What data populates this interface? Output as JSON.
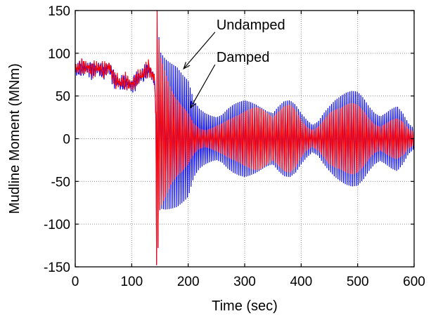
{
  "chart_data": {
    "type": "line",
    "title": "",
    "xlabel": "Time (sec)",
    "ylabel": "Mudline Moment (MNm)",
    "xlim": [
      0,
      600
    ],
    "ylim": [
      -150,
      150
    ],
    "xticks": [
      "0",
      "100",
      "200",
      "300",
      "400",
      "500",
      "600"
    ],
    "yticks": [
      "150",
      "100",
      "50",
      "0",
      "-50",
      "-100",
      "-150"
    ],
    "grid": true,
    "legend": "none",
    "series": [
      {
        "name": "Undamped",
        "color": "#0000ff",
        "x": [
          0,
          10,
          20,
          30,
          40,
          50,
          60,
          70,
          80,
          90,
          100,
          110,
          120,
          130,
          140,
          145,
          150,
          160,
          170,
          180,
          190,
          200,
          210,
          220,
          230,
          240,
          250,
          260,
          270,
          280,
          290,
          300,
          310,
          320,
          330,
          340,
          350,
          360,
          370,
          380,
          390,
          400,
          410,
          420,
          430,
          440,
          450,
          460,
          470,
          480,
          490,
          500,
          510,
          520,
          530,
          540,
          550,
          560,
          570,
          580,
          590,
          600
        ],
        "amplitude": [
          0,
          0,
          0,
          0,
          0,
          0,
          0,
          0,
          0,
          0,
          0,
          0,
          0,
          0,
          0,
          150,
          92,
          88,
          85,
          82,
          75,
          68,
          45,
          35,
          30,
          27,
          25,
          28,
          35,
          40,
          43,
          45,
          43,
          40,
          36,
          32,
          30,
          38,
          44,
          45,
          40,
          30,
          22,
          16,
          20,
          30,
          38,
          45,
          50,
          54,
          56,
          55,
          48,
          38,
          30,
          26,
          30,
          35,
          38,
          30,
          18,
          12
        ],
        "center": [
          80,
          82,
          83,
          80,
          82,
          78,
          84,
          68,
          64,
          66,
          62,
          70,
          74,
          82,
          70,
          0,
          10,
          5,
          3,
          2,
          0,
          0,
          0,
          0,
          0,
          0,
          0,
          0,
          0,
          0,
          0,
          0,
          0,
          0,
          0,
          0,
          0,
          0,
          0,
          0,
          0,
          0,
          0,
          0,
          0,
          0,
          0,
          0,
          0,
          0,
          0,
          0,
          0,
          0,
          0,
          0,
          0,
          0,
          0,
          0,
          0,
          0
        ]
      },
      {
        "name": "Damped",
        "color": "#ff0000",
        "x": [
          0,
          10,
          20,
          30,
          40,
          50,
          60,
          70,
          80,
          90,
          100,
          110,
          120,
          130,
          140,
          145,
          150,
          160,
          170,
          180,
          190,
          200,
          210,
          220,
          230,
          240,
          250,
          260,
          270,
          280,
          290,
          300,
          310,
          320,
          330,
          340,
          350,
          360,
          370,
          380,
          390,
          400,
          410,
          420,
          430,
          440,
          450,
          460,
          470,
          480,
          490,
          500,
          510,
          520,
          530,
          540,
          550,
          560,
          570,
          580,
          590,
          600
        ],
        "amplitude": [
          0,
          0,
          0,
          0,
          0,
          0,
          0,
          0,
          0,
          0,
          0,
          0,
          0,
          0,
          0,
          150,
          90,
          72,
          55,
          45,
          38,
          30,
          18,
          12,
          10,
          12,
          15,
          18,
          22,
          25,
          28,
          32,
          35,
          37,
          35,
          30,
          25,
          32,
          38,
          40,
          34,
          22,
          14,
          10,
          14,
          22,
          30,
          34,
          36,
          40,
          42,
          40,
          33,
          24,
          17,
          14,
          18,
          22,
          24,
          20,
          12,
          8
        ],
        "center": [
          82,
          83,
          84,
          81,
          83,
          79,
          85,
          69,
          65,
          67,
          63,
          71,
          75,
          83,
          71,
          0,
          8,
          4,
          2,
          1,
          0,
          0,
          0,
          0,
          0,
          0,
          0,
          0,
          0,
          0,
          0,
          0,
          0,
          0,
          0,
          0,
          0,
          0,
          0,
          0,
          0,
          0,
          0,
          0,
          0,
          0,
          0,
          0,
          0,
          0,
          0,
          0,
          0,
          0,
          0,
          0,
          0,
          0,
          0,
          0,
          0,
          0
        ]
      }
    ],
    "annotations": [
      {
        "text": "Undamped",
        "arrow_to": [
          192,
          82
        ],
        "text_at": [
          250,
          128
        ]
      },
      {
        "text": "Damped",
        "arrow_to": [
          204,
          36
        ],
        "text_at": [
          250,
          90
        ]
      }
    ]
  }
}
